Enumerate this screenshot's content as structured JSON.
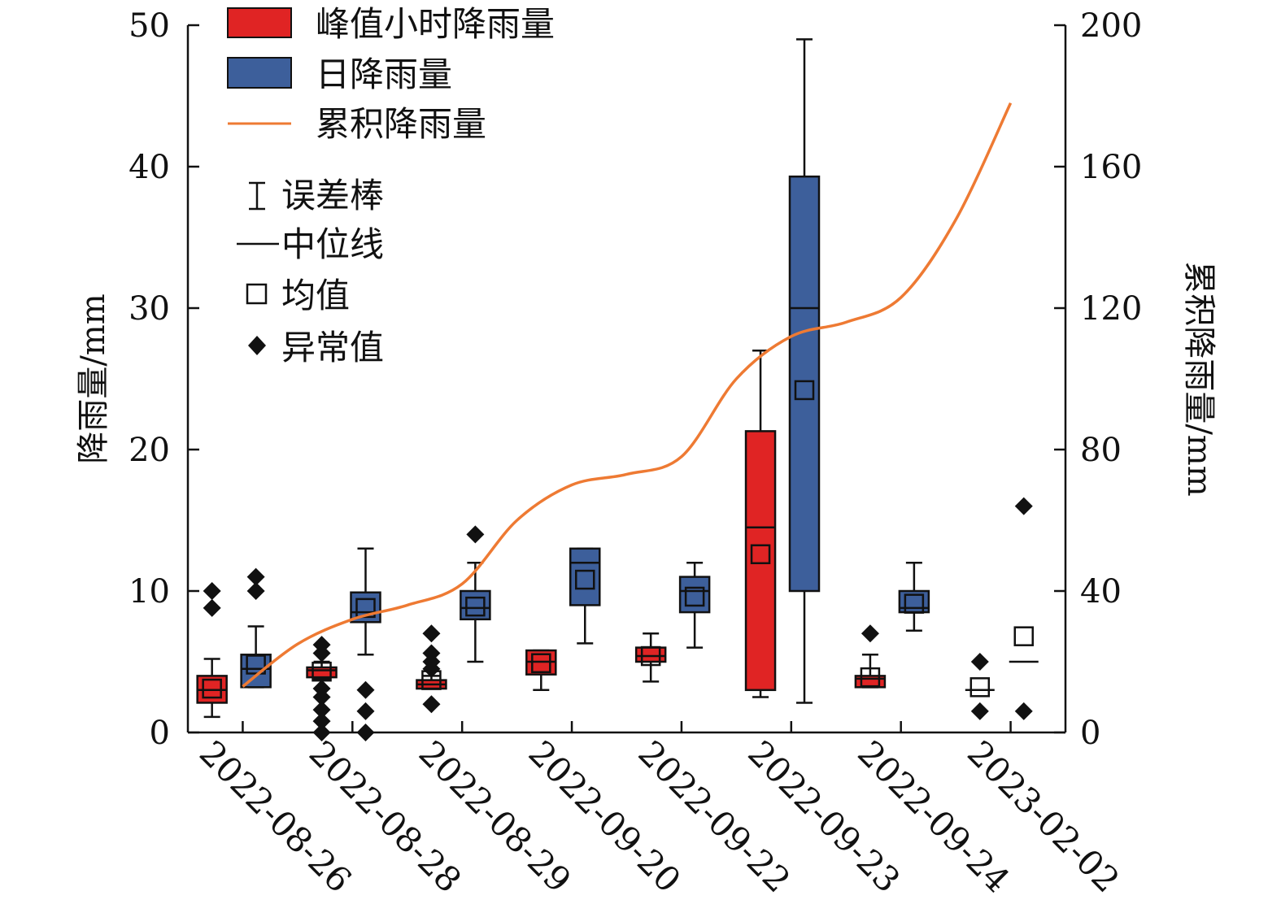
{
  "chart_data": {
    "type": "box",
    "categories": [
      "2022-08-26",
      "2022-08-28",
      "2022-08-29",
      "2022-09-20",
      "2022-09-22",
      "2022-09-23",
      "2022-09-24",
      "2023-02-02"
    ],
    "y_left": {
      "label": "降雨量/mm",
      "range": [
        0,
        50
      ],
      "ticks": [
        0,
        10,
        20,
        30,
        40,
        50
      ]
    },
    "y_right": {
      "label": "累积降雨量/mm",
      "range": [
        0,
        200
      ],
      "ticks": [
        0,
        40,
        80,
        120,
        160,
        200
      ]
    },
    "legend": {
      "series": [
        {
          "name": "峰值小时降雨量",
          "color": "#e02424",
          "kind": "box"
        },
        {
          "name": "日降雨量",
          "color": "#3d5f9b",
          "kind": "box"
        },
        {
          "name": "累积降雨量",
          "color": "#ee7a33",
          "kind": "line"
        }
      ],
      "symbols": [
        {
          "name": "误差棒",
          "symbol": "errorbar"
        },
        {
          "name": "中位线",
          "symbol": "median"
        },
        {
          "name": "均值",
          "symbol": "mean"
        },
        {
          "name": "异常值",
          "symbol": "outlier"
        }
      ]
    },
    "series": [
      {
        "name": "峰值小时降雨量",
        "color": "#e02424",
        "boxes": [
          {
            "category": "2022-08-26",
            "whisker_low": 1.1,
            "q1": 2.1,
            "median": 3.0,
            "q3": 4.0,
            "whisker_high": 5.2,
            "mean": 3.1,
            "outliers": [
              8.8,
              10.0
            ]
          },
          {
            "category": "2022-08-28",
            "whisker_low": 3.8,
            "q1": 3.9,
            "median": 4.4,
            "q3": 4.6,
            "whisker_high": 5.0,
            "mean": 4.3,
            "outliers": [
              0.0,
              0.8,
              1.6,
              2.5,
              3.1,
              5.6,
              6.2
            ]
          },
          {
            "category": "2022-08-29",
            "whisker_low": 3.1,
            "q1": 3.1,
            "median": 3.4,
            "q3": 3.7,
            "whisker_high": 4.0,
            "mean": 3.7,
            "outliers": [
              2.0,
              4.5,
              5.0,
              5.6,
              7.0
            ]
          },
          {
            "category": "2022-09-20",
            "whisker_low": 3.0,
            "q1": 4.1,
            "median": 5.0,
            "q3": 5.8,
            "whisker_high": 5.8,
            "mean": 4.9,
            "outliers": []
          },
          {
            "category": "2022-09-22",
            "whisker_low": 3.6,
            "q1": 5.0,
            "median": 5.4,
            "q3": 6.0,
            "whisker_high": 7.0,
            "mean": 5.4,
            "outliers": []
          },
          {
            "category": "2022-09-23",
            "whisker_low": 2.5,
            "q1": 3.0,
            "median": 14.5,
            "q3": 21.3,
            "whisker_high": 27.0,
            "mean": 12.6,
            "outliers": []
          },
          {
            "category": "2022-09-24",
            "whisker_low": 3.2,
            "q1": 3.2,
            "median": 3.8,
            "q3": 4.0,
            "whisker_high": 5.5,
            "mean": 3.9,
            "outliers": [
              7.0
            ]
          },
          {
            "category": "2023-02-02",
            "whisker_low": null,
            "q1": 3.0,
            "median": 3.0,
            "q3": 3.0,
            "whisker_high": null,
            "mean": 3.2,
            "outliers": [
              1.5,
              5.0
            ],
            "line_only": true
          }
        ]
      },
      {
        "name": "日降雨量",
        "color": "#3d5f9b",
        "boxes": [
          {
            "category": "2022-08-26",
            "whisker_low": 3.2,
            "q1": 3.2,
            "median": 4.5,
            "q3": 5.5,
            "whisker_high": 7.5,
            "mean": 4.8,
            "outliers": [
              10.0,
              11.0
            ]
          },
          {
            "category": "2022-08-28",
            "whisker_low": 5.5,
            "q1": 7.8,
            "median": 8.5,
            "q3": 9.9,
            "whisker_high": 13.0,
            "mean": 8.8,
            "outliers": [
              0.0,
              1.5,
              3.0
            ]
          },
          {
            "category": "2022-08-29",
            "whisker_low": 5.0,
            "q1": 8.0,
            "median": 8.8,
            "q3": 10.0,
            "whisker_high": 12.0,
            "mean": 8.9,
            "outliers": [
              14.0
            ]
          },
          {
            "category": "2022-09-20",
            "whisker_low": 6.3,
            "q1": 9.0,
            "median": 12.0,
            "q3": 13.0,
            "whisker_high": 13.0,
            "mean": 10.8,
            "outliers": []
          },
          {
            "category": "2022-09-22",
            "whisker_low": 6.0,
            "q1": 8.5,
            "median": 10.0,
            "q3": 11.0,
            "whisker_high": 12.0,
            "mean": 9.6,
            "outliers": []
          },
          {
            "category": "2022-09-23",
            "whisker_low": 2.1,
            "q1": 10.0,
            "median": 30.0,
            "q3": 39.3,
            "whisker_high": 49.0,
            "mean": 24.2,
            "outliers": []
          },
          {
            "category": "2022-09-24",
            "whisker_low": 7.2,
            "q1": 8.5,
            "median": 8.8,
            "q3": 10.0,
            "whisker_high": 12.0,
            "mean": 9.1,
            "outliers": []
          },
          {
            "category": "2023-02-02",
            "whisker_low": null,
            "q1": 5.0,
            "median": 5.0,
            "q3": 5.0,
            "whisker_high": null,
            "mean": 6.8,
            "outliers": [
              1.5,
              16.0
            ],
            "line_only": true
          }
        ]
      },
      {
        "name": "累积降雨量",
        "color": "#ee7a33",
        "kind": "line",
        "axis": "right",
        "x": [
          0.5,
          1.0,
          1.5,
          2.0,
          2.5,
          3.0,
          3.5,
          4.0,
          4.5,
          5.0,
          5.5,
          6.0,
          6.5,
          7.0,
          7.5
        ],
        "values": [
          13,
          25,
          32,
          36,
          42,
          60,
          70,
          73,
          78,
          100,
          112,
          116,
          123,
          145,
          178
        ]
      }
    ]
  }
}
